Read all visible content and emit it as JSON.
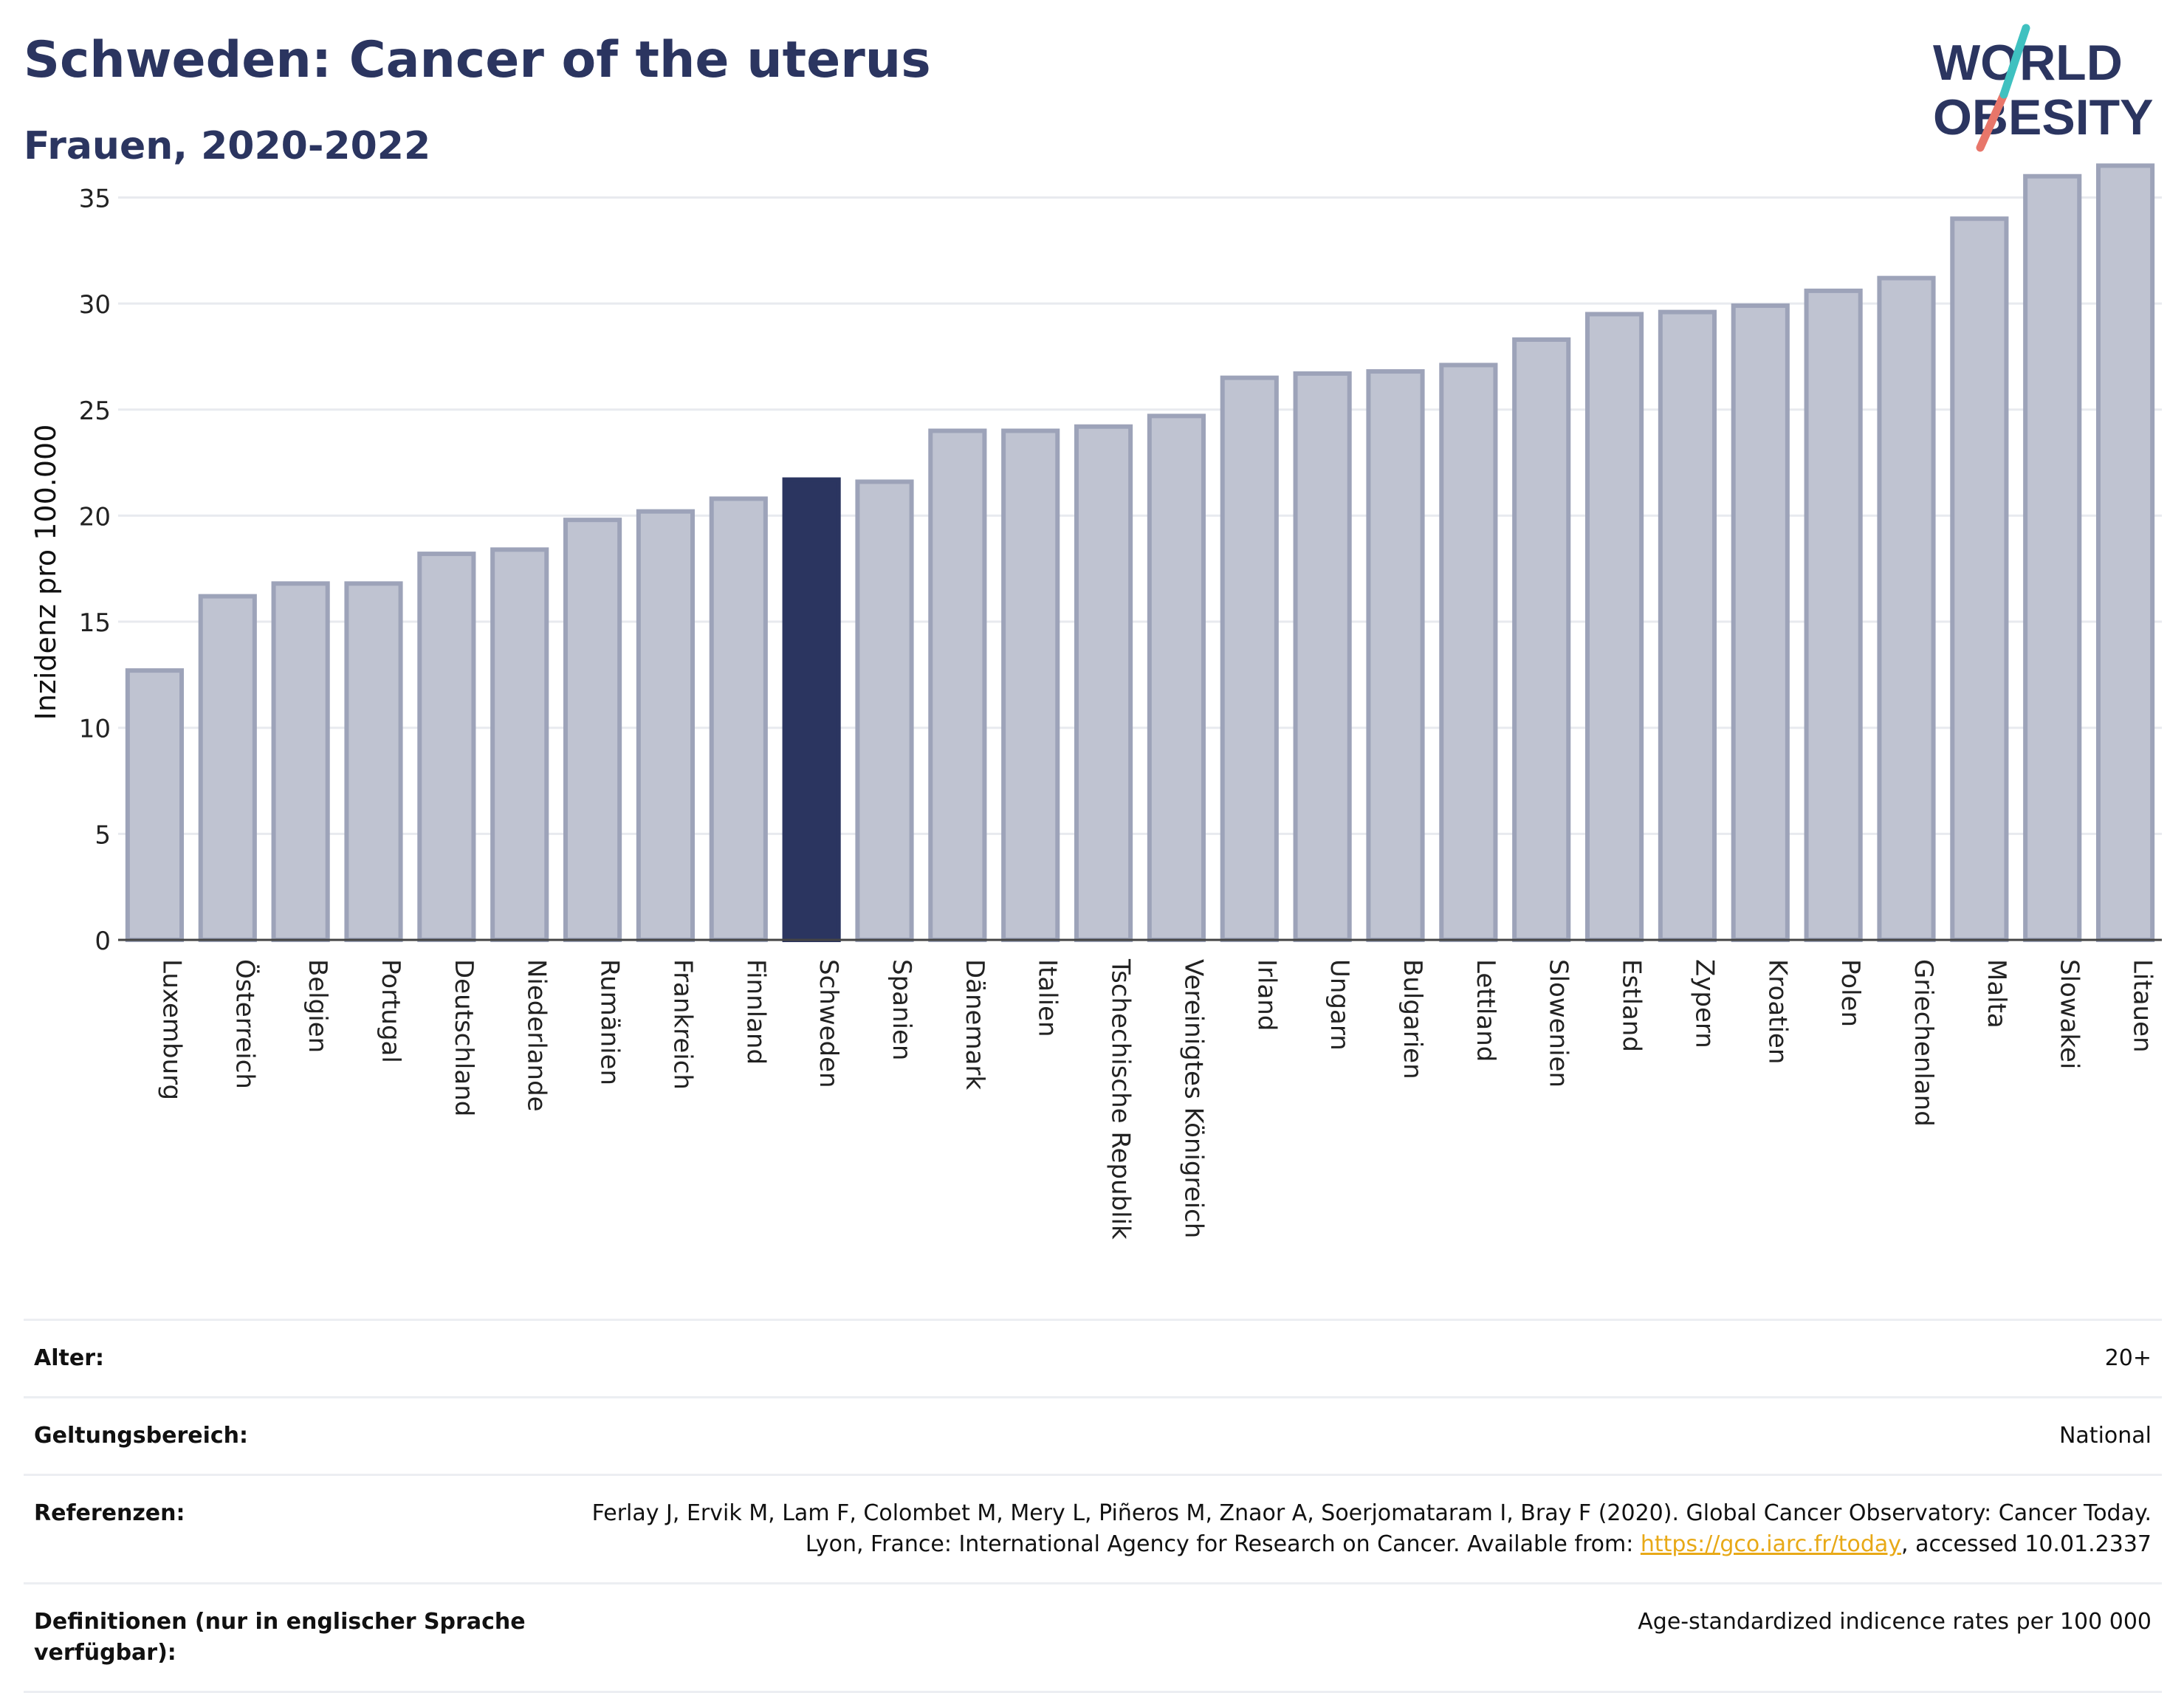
{
  "header": {
    "title": "Schweden: Cancer of the uterus",
    "subtitle": "Frauen, 2020-2022",
    "logo_line1": "WORLD",
    "logo_line2": "OBESITY"
  },
  "colors": {
    "highlight": "#2b3560",
    "bar_fill": "#bfc3d1",
    "bar_stroke": "#9da3b9",
    "title": "#2b3560",
    "logo_teal": "#3fc1c0",
    "logo_coral": "#e8766a",
    "link": "#e8a917"
  },
  "chart_data": {
    "type": "bar",
    "title": "Schweden: Cancer of the uterus",
    "subtitle": "Frauen, 2020-2022",
    "ylabel": "Inzidenz pro 100.000",
    "xlabel": "",
    "ylim": [
      0,
      37
    ],
    "yticks": [
      0,
      5,
      10,
      15,
      20,
      25,
      30,
      35
    ],
    "grid": true,
    "highlight": "Schweden",
    "categories": [
      "Luxemburg",
      "Österreich",
      "Belgien",
      "Portugal",
      "Deutschland",
      "Niederlande",
      "Rumänien",
      "Frankreich",
      "Finnland",
      "Schweden",
      "Spanien",
      "Dänemark",
      "Italien",
      "Tschechische Republik",
      "Vereinigtes Königreich",
      "Irland",
      "Ungarn",
      "Bulgarien",
      "Lettland",
      "Slowenien",
      "Estland",
      "Zypern",
      "Kroatien",
      "Polen",
      "Griechenland",
      "Malta",
      "Slowakei",
      "Litauen"
    ],
    "values": [
      12.7,
      16.2,
      16.8,
      16.8,
      18.2,
      18.4,
      19.8,
      20.2,
      20.8,
      21.7,
      21.6,
      24.0,
      24.0,
      24.2,
      24.7,
      26.5,
      26.7,
      26.8,
      27.1,
      28.3,
      29.5,
      29.6,
      29.9,
      30.6,
      31.2,
      34.0,
      36.0,
      36.5
    ]
  },
  "info": {
    "rows": [
      {
        "label": "Alter:",
        "value": "20+"
      },
      {
        "label": "Geltungsbereich:",
        "value": "National"
      },
      {
        "label": "Referenzen:",
        "value_pre": "Ferlay J, Ervik M, Lam F, Colombet M, Mery L, Piñeros M, Znaor A, Soerjomataram I, Bray F (2020). Global Cancer Observatory: Cancer Today. Lyon, France: International Agency for Research on Cancer. Available from: ",
        "link": "https://gco.iarc.fr/today",
        "value_post": ", accessed 10.01.2337"
      },
      {
        "label": "Definitionen (nur in englischer Sprache verfügbar):",
        "value": "Age-standardized indicence rates per 100 000"
      }
    ]
  }
}
